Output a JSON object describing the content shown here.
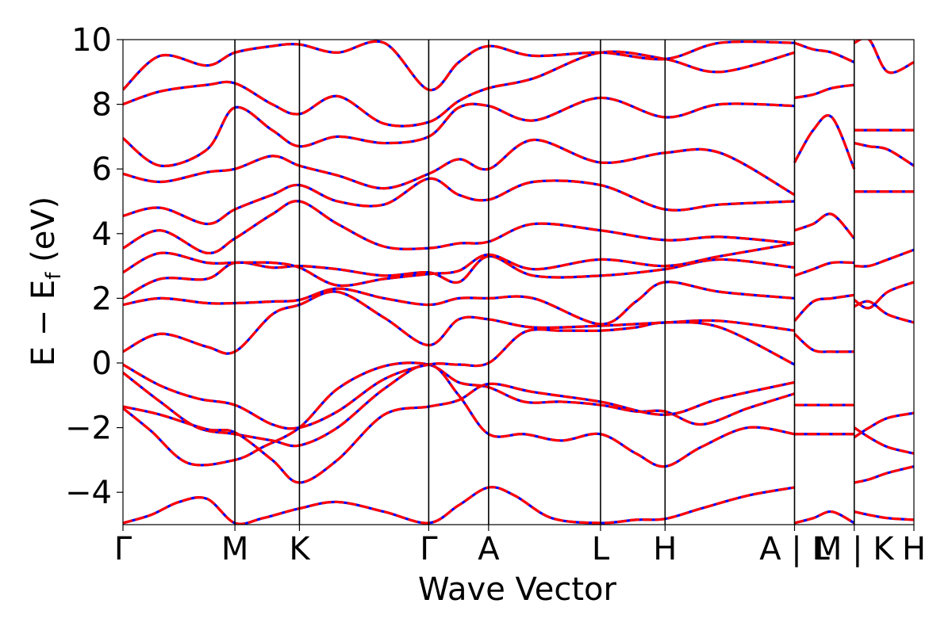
{
  "chart_data": {
    "type": "line",
    "xlabel": "Wave Vector",
    "ylabel_main": "E − E",
    "ylabel_sub": "f",
    "ylabel_unit": " (eV)",
    "ylim": [
      -5,
      10
    ],
    "yticks": [
      {
        "value": 10,
        "label": "10"
      },
      {
        "value": 8,
        "label": "8"
      },
      {
        "value": 6,
        "label": "6"
      },
      {
        "value": 4,
        "label": "4"
      },
      {
        "value": 2,
        "label": "2"
      },
      {
        "value": 0,
        "label": "0"
      },
      {
        "value": -2,
        "label": "−2"
      },
      {
        "value": -4,
        "label": "−4"
      }
    ],
    "kpath": [
      {
        "label": "Γ",
        "position": 0.0
      },
      {
        "label": "M",
        "position": 0.6
      },
      {
        "label": "K",
        "position": 0.946
      },
      {
        "label": "Γ",
        "position": 1.639
      },
      {
        "label": "A",
        "position": 1.96
      },
      {
        "label": "A",
        "position": 1.96,
        "hidden": true
      },
      {
        "label": "L",
        "position": 2.56
      },
      {
        "label": "H",
        "position": 2.906
      },
      {
        "label": "A | L",
        "position": 3.6
      },
      {
        "label": "M | K",
        "position": 3.92
      },
      {
        "label": "H",
        "position": 4.24
      }
    ],
    "segment_breaks": [
      3.6,
      3.92
    ],
    "grid": false,
    "legend": "none",
    "colors": {
      "series_a": "#ff0000",
      "series_b": "#0000ff",
      "axes": "#000000"
    },
    "bands": [
      {
        "name": "",
        "x": [
          0,
          0.15,
          0.3,
          0.45,
          0.6,
          0.75,
          0.946,
          1.15,
          1.4,
          1.639,
          1.8,
          1.96,
          2.1,
          2.3,
          2.56,
          2.75,
          2.906,
          3.1,
          3.35,
          3.6
        ],
        "y": [
          -4.95,
          -4.7,
          -4.3,
          -4.2,
          -4.95,
          -4.8,
          -4.5,
          -4.3,
          -4.6,
          -4.95,
          -4.4,
          -3.85,
          -4.1,
          -4.8,
          -4.95,
          -4.85,
          -4.82,
          -4.5,
          -4.1,
          -3.85
        ]
      },
      {
        "name": "",
        "x": [
          0,
          0.15,
          0.35,
          0.6,
          0.75,
          0.946,
          1.15,
          1.4,
          1.639,
          1.8,
          1.96,
          2.15,
          2.35,
          2.56,
          2.75,
          2.906,
          3.1,
          3.35,
          3.6
        ],
        "y": [
          -1.4,
          -2.1,
          -3.1,
          -3.0,
          -2.6,
          -2.0,
          -0.8,
          -0.1,
          -0.05,
          -0.6,
          -0.75,
          -1.2,
          -1.2,
          -1.3,
          -1.5,
          -1.5,
          -1.9,
          -1.4,
          -0.95
        ]
      },
      {
        "name": "",
        "x": [
          0,
          0.2,
          0.4,
          0.6,
          0.8,
          0.946,
          1.15,
          1.4,
          1.639,
          1.8,
          1.96,
          2.15,
          2.35,
          2.56,
          2.75,
          2.906,
          3.1,
          3.35,
          3.6
        ],
        "y": [
          -0.3,
          -1.2,
          -2.0,
          -2.2,
          -2.4,
          -2.55,
          -2.0,
          -0.8,
          -0.05,
          -1.0,
          -2.2,
          -2.2,
          -2.4,
          -2.2,
          -2.8,
          -3.2,
          -2.6,
          -2.0,
          -2.2
        ]
      },
      {
        "name": "",
        "x": [
          0,
          0.2,
          0.45,
          0.6,
          0.8,
          0.946,
          1.15,
          1.4,
          1.639,
          1.8,
          1.96,
          2.2,
          2.56,
          2.906,
          3.2,
          3.6
        ],
        "y": [
          -1.35,
          -1.6,
          -2.05,
          -2.15,
          -3.0,
          -3.7,
          -3.0,
          -1.6,
          -1.35,
          -1.15,
          -0.65,
          -0.9,
          -1.2,
          -1.6,
          -1.1,
          -0.6
        ]
      },
      {
        "name": "",
        "x": [
          0,
          0.2,
          0.4,
          0.6,
          0.8,
          0.946,
          1.15,
          1.4,
          1.639,
          1.8,
          1.96,
          2.15,
          2.35,
          2.56,
          2.75,
          2.906,
          3.2,
          3.6
        ],
        "y": [
          -0.05,
          -0.7,
          -1.1,
          -1.3,
          -1.9,
          -2.0,
          -1.5,
          -0.5,
          -0.05,
          -0.05,
          0.0,
          0.95,
          1.0,
          1.0,
          1.1,
          1.25,
          1.1,
          -0.05
        ]
      },
      {
        "name": "",
        "x": [
          0,
          0.2,
          0.45,
          0.6,
          0.8,
          0.946,
          1.15,
          1.4,
          1.639,
          1.8,
          1.96,
          2.2,
          2.56,
          2.906,
          3.2,
          3.6
        ],
        "y": [
          0.35,
          0.9,
          0.5,
          0.35,
          1.5,
          1.8,
          2.2,
          1.4,
          0.55,
          1.35,
          1.35,
          1.1,
          1.15,
          1.25,
          1.3,
          1.0
        ]
      },
      {
        "name": "",
        "x": [
          0,
          0.2,
          0.45,
          0.6,
          0.8,
          0.946,
          1.15,
          1.4,
          1.639,
          1.8,
          1.96,
          2.2,
          2.56,
          2.75,
          2.906,
          3.2,
          3.6
        ],
        "y": [
          1.8,
          2.0,
          1.85,
          1.85,
          1.9,
          1.95,
          2.3,
          2.0,
          1.8,
          2.0,
          2.0,
          2.0,
          1.2,
          1.9,
          2.5,
          2.2,
          2.0
        ]
      },
      {
        "name": "",
        "x": [
          0,
          0.2,
          0.45,
          0.6,
          0.8,
          0.946,
          1.15,
          1.4,
          1.639,
          1.8,
          1.96,
          2.2,
          2.56,
          2.906,
          3.2,
          3.6
        ],
        "y": [
          2.0,
          2.6,
          2.6,
          3.1,
          2.95,
          3.0,
          2.9,
          2.7,
          2.8,
          2.5,
          3.3,
          2.7,
          2.7,
          2.9,
          3.2,
          2.95
        ]
      },
      {
        "name": "",
        "x": [
          0,
          0.2,
          0.45,
          0.6,
          0.8,
          0.946,
          1.15,
          1.4,
          1.639,
          1.8,
          1.96,
          2.2,
          2.56,
          2.906,
          3.2,
          3.6
        ],
        "y": [
          2.8,
          3.4,
          3.1,
          3.1,
          3.1,
          2.95,
          2.4,
          2.6,
          2.75,
          2.85,
          3.35,
          2.9,
          3.2,
          3.0,
          3.3,
          3.7
        ]
      },
      {
        "name": "",
        "x": [
          0,
          0.2,
          0.45,
          0.6,
          0.8,
          0.946,
          1.15,
          1.4,
          1.639,
          1.8,
          1.96,
          2.2,
          2.56,
          2.906,
          3.2,
          3.6
        ],
        "y": [
          3.55,
          4.1,
          3.4,
          3.85,
          4.6,
          5.0,
          4.3,
          3.6,
          3.55,
          3.7,
          3.75,
          4.3,
          4.1,
          3.8,
          3.9,
          3.7
        ]
      },
      {
        "name": "",
        "x": [
          0,
          0.2,
          0.45,
          0.6,
          0.8,
          0.946,
          1.15,
          1.4,
          1.639,
          1.8,
          1.96,
          2.2,
          2.56,
          2.906,
          3.2,
          3.6
        ],
        "y": [
          4.55,
          4.8,
          4.3,
          4.75,
          5.2,
          5.5,
          5.0,
          4.9,
          5.7,
          5.2,
          5.05,
          5.6,
          5.5,
          4.75,
          4.9,
          5.0
        ]
      },
      {
        "name": "",
        "x": [
          0,
          0.2,
          0.45,
          0.6,
          0.8,
          0.946,
          1.15,
          1.4,
          1.639,
          1.8,
          1.96,
          2.2,
          2.56,
          2.906,
          3.2,
          3.6
        ],
        "y": [
          5.85,
          5.6,
          5.9,
          6.0,
          6.4,
          6.1,
          5.8,
          5.4,
          5.85,
          6.3,
          6.0,
          6.9,
          6.2,
          6.5,
          6.5,
          5.2
        ]
      },
      {
        "name": "",
        "x": [
          0,
          0.2,
          0.45,
          0.6,
          0.8,
          0.946,
          1.15,
          1.4,
          1.639,
          1.8,
          1.96,
          2.2,
          2.56,
          2.906,
          3.2,
          3.6
        ],
        "y": [
          6.95,
          6.1,
          6.6,
          7.9,
          7.2,
          6.7,
          7.0,
          6.8,
          7.0,
          7.9,
          7.95,
          7.5,
          8.2,
          7.6,
          8.0,
          7.95
        ]
      },
      {
        "name": "",
        "x": [
          0,
          0.2,
          0.45,
          0.6,
          0.8,
          0.946,
          1.15,
          1.4,
          1.639,
          1.8,
          1.96,
          2.2,
          2.56,
          2.906,
          3.2,
          3.6
        ],
        "y": [
          8.0,
          8.4,
          8.6,
          8.65,
          8.0,
          7.7,
          8.25,
          7.4,
          7.45,
          8.1,
          8.5,
          8.8,
          9.6,
          9.4,
          9.0,
          9.6
        ]
      },
      {
        "name": "",
        "x": [
          0,
          0.2,
          0.45,
          0.6,
          0.8,
          0.946,
          1.15,
          1.4,
          1.639,
          1.8,
          1.96,
          2.2,
          2.56,
          2.906,
          3.2,
          3.6
        ],
        "y": [
          8.45,
          9.5,
          9.2,
          9.6,
          9.8,
          9.85,
          9.6,
          9.9,
          8.45,
          9.3,
          9.8,
          9.5,
          9.6,
          9.4,
          9.9,
          9.9
        ]
      },
      {
        "name": "",
        "x": [
          3.6,
          3.7,
          3.8,
          3.92
        ],
        "y": [
          -4.95,
          -4.8,
          -4.6,
          -4.95
        ]
      },
      {
        "name": "",
        "x": [
          3.6,
          3.7,
          3.8,
          3.92
        ],
        "y": [
          -1.3,
          -1.3,
          -1.3,
          -1.3
        ]
      },
      {
        "name": "",
        "x": [
          3.6,
          3.7,
          3.8,
          3.92
        ],
        "y": [
          -2.2,
          -2.2,
          -2.2,
          -2.2
        ]
      },
      {
        "name": "",
        "x": [
          3.6,
          3.7,
          3.8,
          3.92
        ],
        "y": [
          0.9,
          0.4,
          0.35,
          0.35
        ]
      },
      {
        "name": "",
        "x": [
          3.6,
          3.7,
          3.8,
          3.92
        ],
        "y": [
          1.3,
          1.9,
          2.0,
          2.1
        ]
      },
      {
        "name": "",
        "x": [
          3.6,
          3.7,
          3.8,
          3.92
        ],
        "y": [
          2.7,
          2.9,
          3.1,
          3.1
        ]
      },
      {
        "name": "",
        "x": [
          3.6,
          3.7,
          3.8,
          3.92
        ],
        "y": [
          4.1,
          4.3,
          4.6,
          3.85
        ]
      },
      {
        "name": "",
        "x": [
          3.6,
          3.7,
          3.8,
          3.92
        ],
        "y": [
          6.2,
          7.2,
          7.6,
          6.0
        ]
      },
      {
        "name": "",
        "x": [
          3.6,
          3.7,
          3.8,
          3.92
        ],
        "y": [
          8.2,
          8.3,
          8.5,
          8.6
        ]
      },
      {
        "name": "",
        "x": [
          3.6,
          3.7,
          3.8,
          3.92
        ],
        "y": [
          9.9,
          9.7,
          9.6,
          9.3
        ]
      },
      {
        "name": "",
        "x": [
          3.92,
          4.0,
          4.1,
          4.24
        ],
        "y": [
          -4.6,
          -4.7,
          -4.8,
          -4.85
        ]
      },
      {
        "name": "",
        "x": [
          3.92,
          4.0,
          4.1,
          4.24
        ],
        "y": [
          -3.7,
          -3.6,
          -3.4,
          -3.2
        ]
      },
      {
        "name": "",
        "x": [
          3.92,
          4.0,
          4.1,
          4.24
        ],
        "y": [
          -2.0,
          -2.3,
          -2.6,
          -2.8
        ]
      },
      {
        "name": "",
        "x": [
          3.92,
          4.0,
          4.1,
          4.24
        ],
        "y": [
          -2.3,
          -2.0,
          -1.7,
          -1.55
        ]
      },
      {
        "name": "",
        "x": [
          3.92,
          4.0,
          4.1,
          4.24
        ],
        "y": [
          1.75,
          1.9,
          1.5,
          1.25
        ]
      },
      {
        "name": "",
        "x": [
          3.92,
          4.0,
          4.1,
          4.24
        ],
        "y": [
          1.95,
          1.7,
          2.2,
          2.5
        ]
      },
      {
        "name": "",
        "x": [
          3.92,
          4.0,
          4.1,
          4.24
        ],
        "y": [
          3.0,
          3.0,
          3.2,
          3.5
        ]
      },
      {
        "name": "",
        "x": [
          3.92,
          4.0,
          4.1,
          4.24
        ],
        "y": [
          5.3,
          5.3,
          5.3,
          5.3
        ]
      },
      {
        "name": "",
        "x": [
          3.92,
          4.0,
          4.1,
          4.24
        ],
        "y": [
          6.8,
          6.7,
          6.6,
          6.1
        ]
      },
      {
        "name": "",
        "x": [
          3.92,
          4.0,
          4.1,
          4.24
        ],
        "y": [
          7.2,
          7.2,
          7.2,
          7.2
        ]
      },
      {
        "name": "",
        "x": [
          3.92,
          4.0,
          4.1,
          4.24
        ],
        "y": [
          9.9,
          10.0,
          9.0,
          9.3
        ]
      }
    ]
  }
}
